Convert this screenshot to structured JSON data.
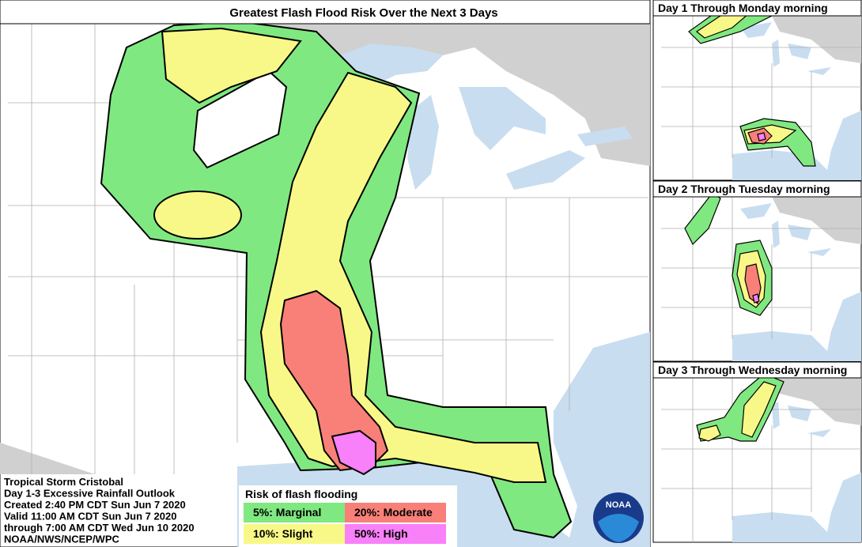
{
  "main": {
    "title": "Greatest Flash Flood Risk Over the Next 3 Days",
    "info": [
      "Tropical Storm Cristobal",
      "Day 1-3 Excessive Rainfall Outlook",
      "Created 2:40 PM CDT Sun Jun 7 2020",
      "Valid 11:00 AM CDT Sun Jun 7 2020",
      "through 7:00 AM CDT Wed Jun 10 2020",
      "NOAA/NWS/NCEP/WPC"
    ]
  },
  "legend": {
    "title": "Risk of flash flooding",
    "items": [
      {
        "label": "5%: Marginal",
        "color": "#80e880"
      },
      {
        "label": "10%: Slight",
        "color": "#f8f888"
      },
      {
        "label": "20%: Moderate",
        "color": "#f88078"
      },
      {
        "label": "50%: High",
        "color": "#f880f8"
      }
    ]
  },
  "insets": [
    {
      "title": "Day 1 Through Monday morning"
    },
    {
      "title": "Day 2 Through Tuesday morning"
    },
    {
      "title": "Day 3 Through Wednesday morning"
    }
  ],
  "logo": "NOAA"
}
